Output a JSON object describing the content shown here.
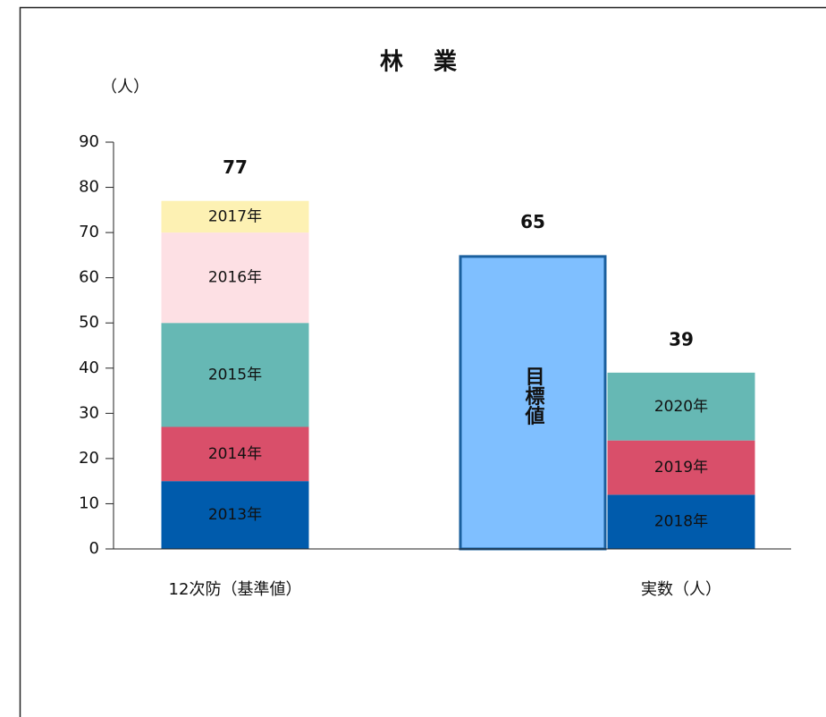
{
  "chart_data": {
    "type": "stacked_bar",
    "title": "林　業",
    "y_label": "（人）",
    "ylim": [
      0,
      90
    ],
    "yticks": [
      0,
      10,
      20,
      30,
      40,
      50,
      60,
      70,
      80,
      90
    ],
    "bars": [
      {
        "category": "12次防（基準値）",
        "total": 77,
        "segments": [
          {
            "name": "2013年",
            "value": 15,
            "color": "#005bac"
          },
          {
            "name": "2014年",
            "value": 12,
            "color": "#d94f6a"
          },
          {
            "name": "2015年",
            "value": 23,
            "color": "#66b8b4"
          },
          {
            "name": "2016年",
            "value": 20,
            "color": "#fde0e4"
          },
          {
            "name": "2017年",
            "value": 7,
            "color": "#fdf1b3"
          }
        ]
      },
      {
        "category": null,
        "total": 65,
        "segments": [
          {
            "name": "目標値",
            "value": 65,
            "color": "#7fbfff",
            "edgecolor": "#1a5f9e"
          }
        ]
      },
      {
        "category": "実数（人）",
        "total": 39,
        "segments": [
          {
            "name": "2018年",
            "value": 12,
            "color": "#005bac"
          },
          {
            "name": "2019年",
            "value": 12,
            "color": "#d94f6a"
          },
          {
            "name": "2020年",
            "value": 15,
            "color": "#66b8b4"
          }
        ]
      }
    ]
  }
}
